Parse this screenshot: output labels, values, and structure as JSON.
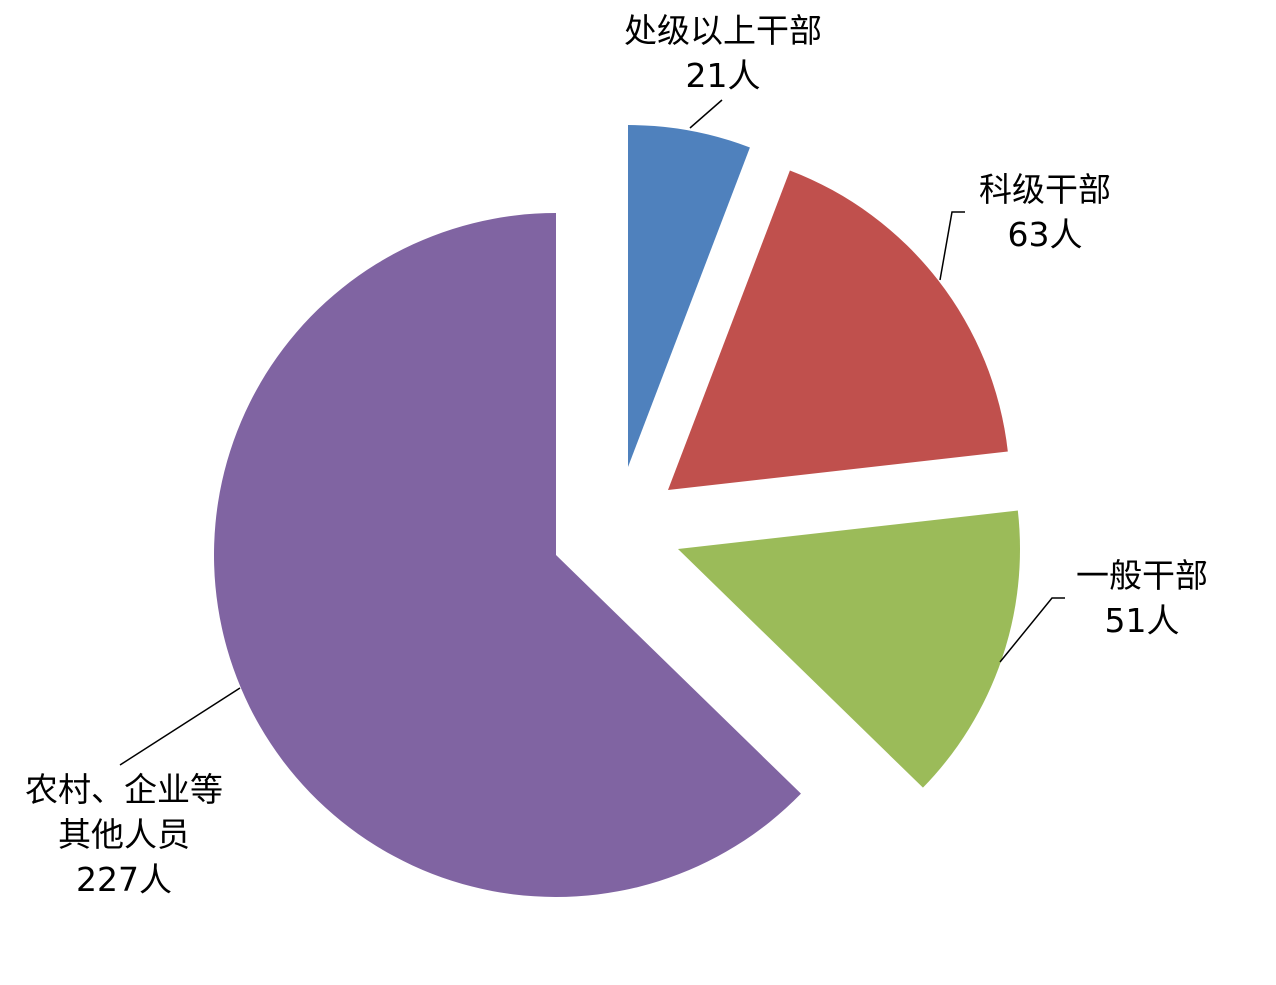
{
  "chart_data": {
    "type": "pie",
    "categories": [
      "处级以上干部",
      "科级干部",
      "一般干部",
      "农村、企业等其他人员"
    ],
    "values": [
      21,
      63,
      51,
      227
    ],
    "value_labels": [
      "21人",
      "63人",
      "51人",
      "227人"
    ],
    "colors": [
      "#4f81bd",
      "#c0504d",
      "#9bbb59",
      "#8064a2"
    ]
  }
}
